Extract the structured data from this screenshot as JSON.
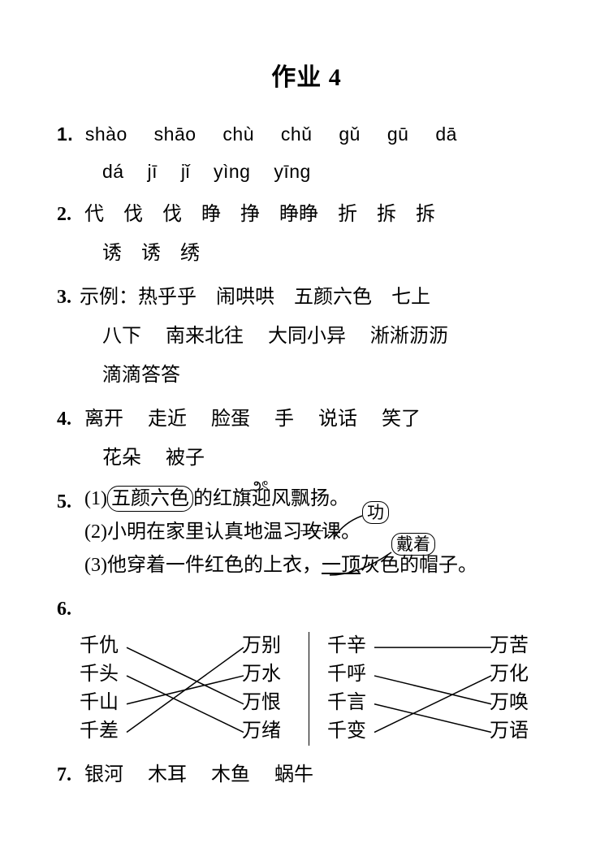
{
  "title": "作业 4",
  "items": {
    "q1": {
      "num": "1.",
      "row1": [
        "shào",
        "shāo",
        "chù",
        "chǔ",
        "gǔ",
        "gū",
        "dā"
      ],
      "row2": [
        "dá",
        "jī",
        "jǐ",
        "yìng",
        "yīng"
      ]
    },
    "q2": {
      "num": "2.",
      "row1": [
        "代",
        "伐",
        "伐",
        "睁",
        "挣",
        "睁睁",
        "折",
        "拆",
        "拆"
      ],
      "row2": [
        "诱",
        "诱",
        "绣"
      ]
    },
    "q3": {
      "num": "3.",
      "lead": "示例：",
      "row1": [
        "热乎乎",
        "闹哄哄",
        "五颜六色",
        "七上"
      ],
      "row2": [
        "八下",
        "南来北往",
        "大同小异",
        "淅淅沥沥"
      ],
      "row3": [
        "滴滴答答"
      ]
    },
    "q4": {
      "num": "4.",
      "row1": [
        "离开",
        "走近",
        "脸蛋",
        "手",
        "说话",
        "笑了"
      ],
      "row2": [
        "花朵",
        "被子"
      ]
    },
    "q5": {
      "num": "5.",
      "s1_idx": "(1)",
      "s1_wrong": "五颜六色",
      "s1_rest1": "的红旗迎风飘扬。",
      "s2_idx": "(2)",
      "s2_a": "小明在家里认真地温习",
      "s2_wrong": "攻",
      "s2_b": "课。",
      "s2_corr": "功",
      "s3_idx": "(3)",
      "s3_a": "他穿着一件红色的上衣，",
      "s3_wrong": "一顶",
      "s3_b": "灰色的帽子。",
      "s3_corr": "戴着"
    },
    "q6": {
      "num": "6.",
      "left": {
        "l": [
          "千仇",
          "千头",
          "千山",
          "千差"
        ],
        "r": [
          "万别",
          "万水",
          "万恨",
          "万绪"
        ],
        "map": [
          [
            0,
            2
          ],
          [
            1,
            3
          ],
          [
            2,
            1
          ],
          [
            3,
            0
          ]
        ]
      },
      "right": {
        "l": [
          "千辛",
          "千呼",
          "千言",
          "千变"
        ],
        "r": [
          "万苦",
          "万化",
          "万唤",
          "万语"
        ],
        "map": [
          [
            0,
            0
          ],
          [
            1,
            2
          ],
          [
            2,
            3
          ],
          [
            3,
            1
          ]
        ]
      }
    },
    "q7": {
      "num": "7.",
      "row": [
        "银河",
        "木耳",
        "木鱼",
        "蜗牛"
      ]
    }
  }
}
